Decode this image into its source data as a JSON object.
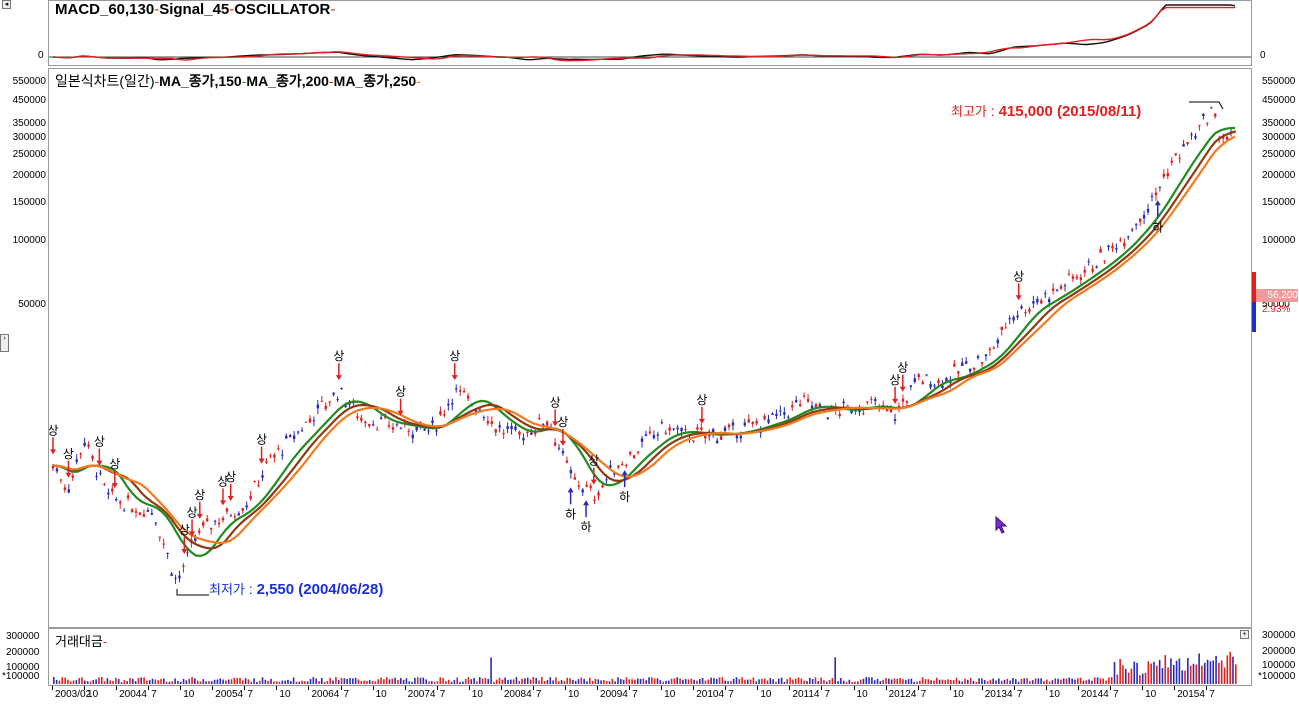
{
  "macd_panel": {
    "indicator_name": "MACD_60,130",
    "signal_name": "Signal_45",
    "oscillator_name": "OSCILLATOR",
    "zero_label": "0"
  },
  "price_panel": {
    "chart_name": "일본식차트(일간)",
    "ma_labels": [
      "MA_종가,150",
      "MA_종가,200",
      "MA_종가,250"
    ],
    "ma_colors": [
      "#1f8c1f",
      "#8b3a12",
      "#f07a20"
    ],
    "high_annotation": {
      "label": "최고가",
      "value": "415,000 (2015/08/11)"
    },
    "low_annotation": {
      "label": "최저가",
      "value": "2,550 (2004/06/28)"
    },
    "current_price": "56,200",
    "current_change": "2.93%"
  },
  "volume_panel": {
    "name": "거래대금",
    "y_labels": [
      "300000",
      "200000",
      "100000"
    ],
    "overlap_label": "*100000"
  },
  "chart_data": {
    "type": "candlestick",
    "y_scale": "log",
    "y_ticks": [
      550000,
      450000,
      350000,
      300000,
      250000,
      200000,
      150000,
      100000,
      50000
    ],
    "y_tick_labels": [
      "550000",
      "450000",
      "350000",
      "300000",
      "250000",
      "200000",
      "150000",
      "100000",
      "50000"
    ],
    "x_tick_labels": [
      "2003/02",
      "10",
      "20044",
      "7",
      "10",
      "20054",
      "7",
      "10",
      "20064",
      "7",
      "10",
      "20074",
      "7",
      "10",
      "20084",
      "7",
      "10",
      "20094",
      "7",
      "10",
      "20104",
      "7",
      "10",
      "20114",
      "7",
      "10",
      "20124",
      "7",
      "10",
      "20134",
      "7",
      "10",
      "20144",
      "7",
      "10",
      "20154",
      "7"
    ],
    "price_path": [
      [
        "2003/02",
        9000
      ],
      [
        "2003/04",
        7000
      ],
      [
        "2003/06",
        12000
      ],
      [
        "2003/09",
        6500
      ],
      [
        "2003/12",
        5800
      ],
      [
        "2004/03",
        5500
      ],
      [
        "2004/06",
        2550
      ],
      [
        "2004/09",
        4500
      ],
      [
        "2004/12",
        5200
      ],
      [
        "2005/03",
        6000
      ],
      [
        "2005/06",
        9500
      ],
      [
        "2005/09",
        12000
      ],
      [
        "2005/12",
        16000
      ],
      [
        "2006/03",
        20000
      ],
      [
        "2006/06",
        15000
      ],
      [
        "2006/09",
        14000
      ],
      [
        "2006/12",
        13500
      ],
      [
        "2007/03",
        13000
      ],
      [
        "2007/06",
        20000
      ],
      [
        "2007/09",
        17000
      ],
      [
        "2007/12",
        13000
      ],
      [
        "2008/03",
        12500
      ],
      [
        "2008/06",
        15000
      ],
      [
        "2008/09",
        8000
      ],
      [
        "2008/12",
        6500
      ],
      [
        "2009/03",
        9000
      ],
      [
        "2009/06",
        11000
      ],
      [
        "2009/09",
        13500
      ],
      [
        "2009/12",
        12500
      ],
      [
        "2010/03",
        12500
      ],
      [
        "2010/06",
        12800
      ],
      [
        "2010/09",
        14000
      ],
      [
        "2010/12",
        15000
      ],
      [
        "2011/03",
        18000
      ],
      [
        "2011/06",
        16000
      ],
      [
        "2011/09",
        16500
      ],
      [
        "2011/12",
        17500
      ],
      [
        "2012/03",
        15500
      ],
      [
        "2012/06",
        23000
      ],
      [
        "2012/09",
        22000
      ],
      [
        "2012/12",
        26000
      ],
      [
        "2013/03",
        29000
      ],
      [
        "2013/06",
        45000
      ],
      [
        "2013/09",
        52000
      ],
      [
        "2013/12",
        60000
      ],
      [
        "2014/03",
        72000
      ],
      [
        "2014/06",
        85000
      ],
      [
        "2014/09",
        110000
      ],
      [
        "2014/12",
        150000
      ],
      [
        "2015/03",
        240000
      ],
      [
        "2015/06",
        320000
      ],
      [
        "2015/08",
        415000
      ],
      [
        "2015/09",
        310000
      ]
    ],
    "series": [
      {
        "name": "MA_종가,150"
      },
      {
        "name": "MA_종가,200"
      },
      {
        "name": "MA_종가,250"
      }
    ],
    "signal_labels": {
      "up": "상",
      "down": "하"
    },
    "signals": [
      [
        "2003/02",
        "상"
      ],
      [
        "2003/04",
        "상"
      ],
      [
        "2003/08",
        "상"
      ],
      [
        "2003/10",
        "상"
      ],
      [
        "2004/07",
        "상"
      ],
      [
        "2004/08",
        "상"
      ],
      [
        "2004/09",
        "상"
      ],
      [
        "2004/12",
        "상"
      ],
      [
        "2005/01",
        "상"
      ],
      [
        "2005/05",
        "상"
      ],
      [
        "2006/03",
        "상"
      ],
      [
        "2006/11",
        "상"
      ],
      [
        "2007/06",
        "상"
      ],
      [
        "2008/07",
        "상"
      ],
      [
        "2008/08",
        "상"
      ],
      [
        "2008/09",
        "하"
      ],
      [
        "2008/11",
        "하"
      ],
      [
        "2008/12",
        "상"
      ],
      [
        "2009/04",
        "하"
      ],
      [
        "2010/02",
        "상"
      ],
      [
        "2012/03",
        "상"
      ],
      [
        "2012/04",
        "상"
      ],
      [
        "2013/07",
        "상"
      ],
      [
        "2015/01",
        "하"
      ]
    ]
  }
}
